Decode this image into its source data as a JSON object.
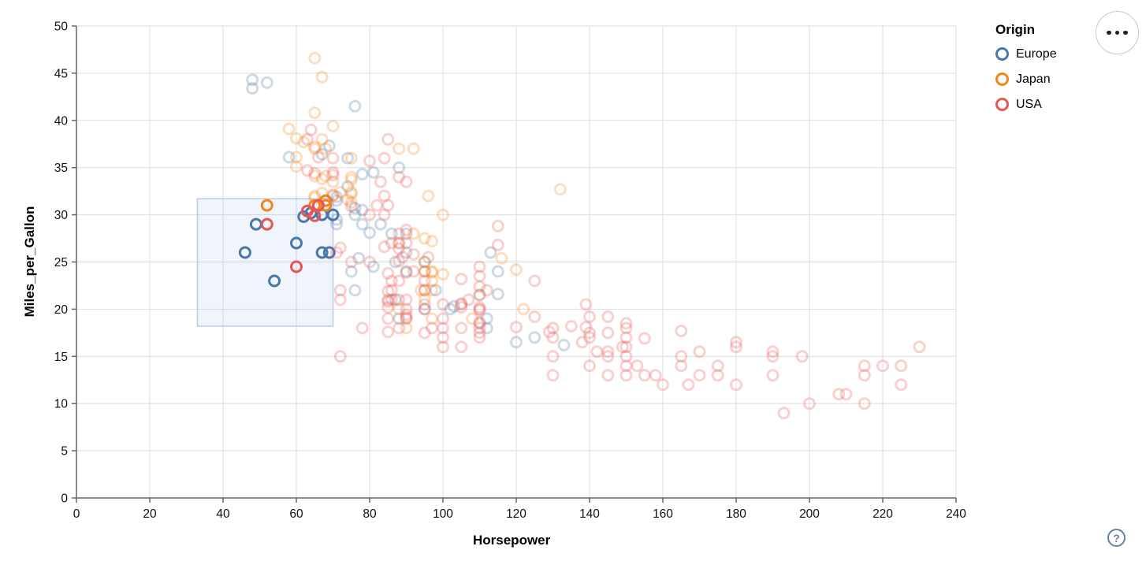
{
  "chart_data": {
    "type": "scatter",
    "title": "",
    "xlabel": "Horsepower",
    "ylabel": "Miles_per_Gallon",
    "xlim": [
      0,
      240
    ],
    "ylim": [
      0,
      50
    ],
    "x_ticks": [
      0,
      20,
      40,
      60,
      80,
      100,
      120,
      140,
      160,
      180,
      200,
      220,
      240
    ],
    "y_ticks": [
      0,
      5,
      10,
      15,
      20,
      25,
      30,
      35,
      40,
      45,
      50
    ],
    "grid": true,
    "legend": {
      "title": "Origin",
      "position": "top-right",
      "entries": [
        {
          "label": "Europe",
          "color": "#4c78a8"
        },
        {
          "label": "Japan",
          "color": "#f58518"
        },
        {
          "label": "USA",
          "color": "#e45756"
        }
      ]
    },
    "brush_selection": {
      "x": [
        33,
        70
      ],
      "y": [
        18.2,
        31.7
      ]
    },
    "series": [
      {
        "name": "Europe",
        "color": "#4c78a8",
        "points": [
          [
            46,
            26
          ],
          [
            49,
            29
          ],
          [
            54,
            23
          ],
          [
            60,
            27
          ],
          [
            62,
            29.8
          ],
          [
            64,
            30.2
          ],
          [
            67,
            30
          ],
          [
            70,
            30
          ],
          [
            67,
            26
          ],
          [
            69,
            26
          ],
          [
            48,
            44.3
          ],
          [
            52,
            44
          ],
          [
            48,
            43.4
          ],
          [
            76,
            41.5
          ],
          [
            69,
            37.3
          ],
          [
            74,
            36
          ],
          [
            58,
            36.1
          ],
          [
            67,
            36.4
          ],
          [
            88,
            35
          ],
          [
            78,
            34.3
          ],
          [
            81,
            34.5
          ],
          [
            74,
            33
          ],
          [
            71,
            31.9
          ],
          [
            71,
            31.5
          ],
          [
            78,
            30.5
          ],
          [
            76,
            30.7
          ],
          [
            76,
            30
          ],
          [
            78,
            29
          ],
          [
            83,
            29
          ],
          [
            71,
            29
          ],
          [
            71,
            29.5
          ],
          [
            90,
            28
          ],
          [
            86,
            28
          ],
          [
            80,
            28.1
          ],
          [
            87,
            25
          ],
          [
            95,
            25
          ],
          [
            77,
            25.4
          ],
          [
            113,
            26
          ],
          [
            90,
            26
          ],
          [
            75,
            24
          ],
          [
            81,
            24.5
          ],
          [
            115,
            24
          ],
          [
            90,
            24
          ],
          [
            98,
            22
          ],
          [
            76,
            22
          ],
          [
            112,
            19
          ],
          [
            112,
            18
          ],
          [
            88,
            19
          ],
          [
            87,
            21
          ],
          [
            95,
            20
          ],
          [
            102,
            20
          ],
          [
            103,
            20.3
          ],
          [
            110,
            21.5
          ],
          [
            115,
            21.6
          ],
          [
            125,
            17
          ],
          [
            120,
            16.5
          ],
          [
            133,
            16.2
          ]
        ]
      },
      {
        "name": "Japan",
        "color": "#f58518",
        "points": [
          [
            52,
            31
          ],
          [
            68,
            31.5
          ],
          [
            68,
            31
          ],
          [
            65,
            31
          ],
          [
            65,
            46.6
          ],
          [
            67,
            44.6
          ],
          [
            65,
            40.8
          ],
          [
            70,
            39.4
          ],
          [
            58,
            39.1
          ],
          [
            62,
            37.7
          ],
          [
            60,
            38.1
          ],
          [
            65,
            37.2
          ],
          [
            65,
            37
          ],
          [
            92,
            37
          ],
          [
            88,
            37
          ],
          [
            67,
            38
          ],
          [
            75,
            36
          ],
          [
            60,
            36.1
          ],
          [
            60,
            35.1
          ],
          [
            65,
            34.1
          ],
          [
            68,
            34.1
          ],
          [
            68,
            37
          ],
          [
            75,
            34
          ],
          [
            75,
            33.7
          ],
          [
            70,
            33.5
          ],
          [
            67,
            33.8
          ],
          [
            96,
            32
          ],
          [
            75,
            32.2
          ],
          [
            72,
            32.4
          ],
          [
            75,
            32.4
          ],
          [
            67,
            32.3
          ],
          [
            65,
            32
          ],
          [
            70,
            32
          ],
          [
            132,
            32.7
          ],
          [
            74,
            31.6
          ],
          [
            75,
            31.3
          ],
          [
            65,
            31.8
          ],
          [
            100,
            30
          ],
          [
            88,
            27
          ],
          [
            95,
            27.5
          ],
          [
            97,
            27.2
          ],
          [
            92,
            28
          ],
          [
            116,
            25.4
          ],
          [
            95,
            25
          ],
          [
            95,
            24
          ],
          [
            97,
            24
          ],
          [
            120,
            24.2
          ],
          [
            97,
            23.9
          ],
          [
            100,
            23.7
          ],
          [
            97,
            23
          ],
          [
            94,
            22
          ],
          [
            97,
            22
          ],
          [
            95,
            21.1
          ],
          [
            122,
            20
          ],
          [
            88,
            20
          ],
          [
            97,
            19
          ],
          [
            90,
            18
          ],
          [
            108,
            19
          ],
          [
            110,
            21.5
          ],
          [
            95,
            22
          ]
        ]
      },
      {
        "name": "USA",
        "color": "#e45756",
        "points": [
          [
            52,
            29
          ],
          [
            60,
            24.5
          ],
          [
            63,
            30.4
          ],
          [
            65,
            29.9
          ],
          [
            66,
            31
          ],
          [
            72,
            15
          ],
          [
            64,
            39
          ],
          [
            63,
            38
          ],
          [
            85,
            38
          ],
          [
            80,
            35.7
          ],
          [
            63,
            34.7
          ],
          [
            65,
            34.4
          ],
          [
            70,
            36
          ],
          [
            84,
            36
          ],
          [
            83,
            33.5
          ],
          [
            90,
            33.5
          ],
          [
            70,
            34.2
          ],
          [
            70,
            34.5
          ],
          [
            66,
            36.1
          ],
          [
            84,
            32
          ],
          [
            82,
            31
          ],
          [
            85,
            31
          ],
          [
            88,
            34
          ],
          [
            75,
            30.9
          ],
          [
            80,
            30
          ],
          [
            84,
            30
          ],
          [
            70,
            32.1
          ],
          [
            90,
            28.4
          ],
          [
            115,
            28.8
          ],
          [
            88,
            28
          ],
          [
            88,
            27
          ],
          [
            90,
            27
          ],
          [
            86,
            27
          ],
          [
            88,
            26.4
          ],
          [
            115,
            26.8
          ],
          [
            72,
            26.5
          ],
          [
            71,
            26
          ],
          [
            84,
            26.6
          ],
          [
            89,
            25.5
          ],
          [
            92,
            25.8
          ],
          [
            96,
            25.5
          ],
          [
            88,
            25.1
          ],
          [
            80,
            25
          ],
          [
            75,
            25
          ],
          [
            95,
            24
          ],
          [
            92,
            24
          ],
          [
            85,
            23.8
          ],
          [
            110,
            24.5
          ],
          [
            90,
            23.9
          ],
          [
            105,
            23.2
          ],
          [
            110,
            23.5
          ],
          [
            95,
            23
          ],
          [
            88,
            23
          ],
          [
            86,
            23
          ],
          [
            125,
            23
          ],
          [
            85,
            21
          ],
          [
            90,
            21
          ],
          [
            88,
            21
          ],
          [
            86,
            21
          ],
          [
            72,
            21
          ],
          [
            95,
            22
          ],
          [
            72,
            22
          ],
          [
            86,
            22
          ],
          [
            107,
            21
          ],
          [
            85,
            21.9
          ],
          [
            110,
            22.4
          ],
          [
            112,
            22
          ],
          [
            85,
            20.8
          ],
          [
            105,
            20.6
          ],
          [
            105,
            20.5
          ],
          [
            95,
            20.5
          ],
          [
            139,
            20.5
          ],
          [
            100,
            20.5
          ],
          [
            85,
            20.2
          ],
          [
            105,
            20.2
          ],
          [
            110,
            20.2
          ],
          [
            90,
            20
          ],
          [
            95,
            20
          ],
          [
            110,
            20
          ],
          [
            110,
            19.9
          ],
          [
            140,
            19.2
          ],
          [
            145,
            19.2
          ],
          [
            125,
            19.2
          ],
          [
            100,
            19
          ],
          [
            90,
            19
          ],
          [
            85,
            19
          ],
          [
            90,
            19.4
          ],
          [
            90,
            19.1
          ],
          [
            110,
            18.6
          ],
          [
            97,
            18
          ],
          [
            88,
            18
          ],
          [
            78,
            18
          ],
          [
            110,
            18.5
          ],
          [
            100,
            18
          ],
          [
            105,
            18
          ],
          [
            110,
            18
          ],
          [
            120,
            18.1
          ],
          [
            139,
            18.1
          ],
          [
            135,
            18.2
          ],
          [
            150,
            18.5
          ],
          [
            130,
            18
          ],
          [
            150,
            18
          ],
          [
            140,
            17
          ],
          [
            100,
            17
          ],
          [
            150,
            17
          ],
          [
            95,
            17.5
          ],
          [
            140,
            17.5
          ],
          [
            110,
            17.5
          ],
          [
            145,
            17.5
          ],
          [
            110,
            17
          ],
          [
            130,
            17
          ],
          [
            129,
            17.6
          ],
          [
            165,
            17.7
          ],
          [
            85,
            17.6
          ],
          [
            150,
            16
          ],
          [
            105,
            16
          ],
          [
            100,
            16
          ],
          [
            230,
            16
          ],
          [
            180,
            16
          ],
          [
            149,
            16
          ],
          [
            155,
            16.9
          ],
          [
            138,
            16.5
          ],
          [
            180,
            16.5
          ],
          [
            165,
            15
          ],
          [
            198,
            15
          ],
          [
            190,
            15
          ],
          [
            150,
            15
          ],
          [
            145,
            15
          ],
          [
            170,
            15.5
          ],
          [
            190,
            15.5
          ],
          [
            145,
            15.5
          ],
          [
            130,
            15
          ],
          [
            142,
            15.5
          ],
          [
            220,
            14
          ],
          [
            215,
            14
          ],
          [
            225,
            14
          ],
          [
            165,
            14
          ],
          [
            175,
            14
          ],
          [
            153,
            14
          ],
          [
            150,
            14
          ],
          [
            140,
            14
          ],
          [
            170,
            13
          ],
          [
            175,
            13
          ],
          [
            150,
            13
          ],
          [
            158,
            13
          ],
          [
            190,
            13
          ],
          [
            215,
            13
          ],
          [
            145,
            13
          ],
          [
            130,
            13
          ],
          [
            155,
            13
          ],
          [
            167,
            12
          ],
          [
            180,
            12
          ],
          [
            160,
            12
          ],
          [
            225,
            12
          ],
          [
            208,
            11
          ],
          [
            210,
            11
          ],
          [
            215,
            10
          ],
          [
            200,
            10
          ],
          [
            193,
            9
          ]
        ]
      }
    ]
  },
  "controls": {
    "menu_button_icon": "ellipsis-horizontal",
    "help_label": "?"
  }
}
